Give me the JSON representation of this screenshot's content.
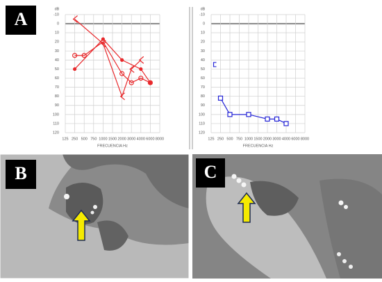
{
  "panel_labels": [
    "A",
    "B",
    "C"
  ],
  "chart_data": [
    {
      "type": "line",
      "y_label": "dB",
      "x_label": "FRECUENCIA Hz",
      "categories": [
        "125",
        "250",
        "500",
        "750",
        "1000",
        "1500",
        "2000",
        "3000",
        "4000",
        "6000",
        "8000"
      ],
      "ylim": [
        -10,
        120
      ],
      "y_inverted": true,
      "zero_line": true,
      "grid": true,
      "yticks": [
        -10,
        0,
        10,
        20,
        30,
        40,
        50,
        60,
        70,
        80,
        90,
        100,
        110,
        120
      ],
      "series": [
        {
          "color": "#e8282b",
          "marker": "circle",
          "values": [
            null,
            35,
            35,
            null,
            20,
            null,
            55,
            65,
            60,
            65,
            null
          ]
        },
        {
          "color": "#e8282b",
          "marker": "dot",
          "values": [
            null,
            50,
            null,
            null,
            17,
            null,
            40,
            null,
            50,
            65,
            null
          ]
        },
        {
          "color": "#e8282b",
          "marker": "bracket",
          "values": [
            null,
            -5,
            null,
            null,
            22,
            null,
            80,
            50,
            40,
            null,
            null
          ]
        }
      ]
    },
    {
      "type": "line",
      "y_label": "dB",
      "x_label": "FRECUENCIA Hz",
      "categories": [
        "125",
        "250",
        "500",
        "750",
        "1000",
        "1500",
        "2000",
        "3000",
        "4000",
        "6000",
        "8000"
      ],
      "ylim": [
        -10,
        120
      ],
      "y_inverted": true,
      "zero_line": true,
      "grid": true,
      "yticks": [
        -10,
        0,
        10,
        20,
        30,
        40,
        50,
        60,
        70,
        80,
        90,
        100,
        110,
        120
      ],
      "series": [
        {
          "color": "#2323d6",
          "marker": "square",
          "values": [
            null,
            82,
            100,
            null,
            100,
            null,
            105,
            105,
            110,
            null,
            null
          ]
        },
        {
          "color": "#2323d6",
          "marker": "bracket-left",
          "values": [
            null,
            45,
            null,
            null,
            null,
            null,
            null,
            null,
            null,
            null,
            null
          ]
        }
      ]
    }
  ]
}
